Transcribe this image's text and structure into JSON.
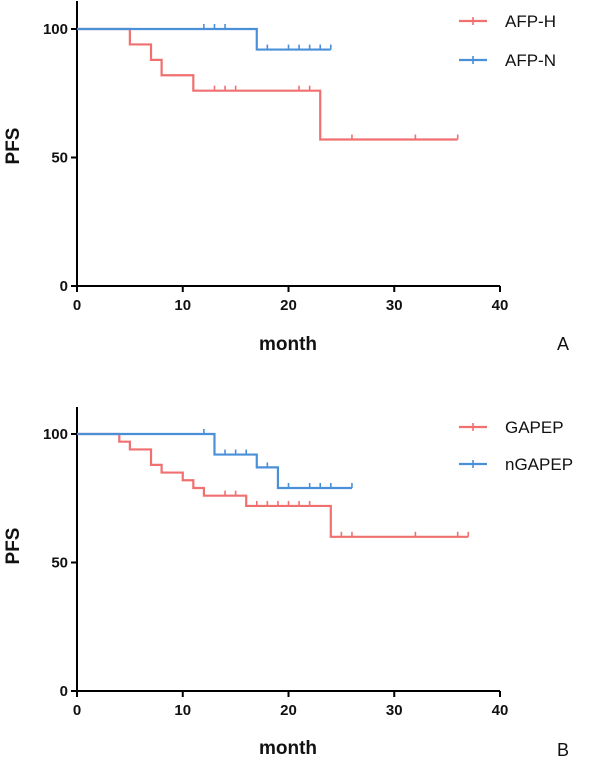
{
  "chart_data": [
    {
      "type": "line",
      "panel_label": "A",
      "xlabel": "month",
      "ylabel": "PFS",
      "xlim": [
        0,
        40
      ],
      "ylim": [
        0,
        110
      ],
      "xticks": [
        0,
        10,
        20,
        30,
        40
      ],
      "yticks": [
        0,
        50,
        100
      ],
      "legend_position": "top-right",
      "series": [
        {
          "name": "AFP-H",
          "color": "#f07070",
          "step": [
            [
              0,
              100
            ],
            [
              5,
              94
            ],
            [
              7,
              88
            ],
            [
              8,
              82
            ],
            [
              11,
              76
            ],
            [
              23,
              57
            ],
            [
              36,
              57
            ]
          ],
          "censored": [
            [
              13,
              76
            ],
            [
              14,
              76
            ],
            [
              15,
              76
            ],
            [
              21,
              76
            ],
            [
              22,
              76
            ],
            [
              26,
              57
            ],
            [
              32,
              57
            ],
            [
              36,
              57
            ]
          ]
        },
        {
          "name": "AFP-N",
          "color": "#4a90d9",
          "step": [
            [
              0,
              100
            ],
            [
              17,
              92
            ],
            [
              24,
              92
            ]
          ],
          "censored": [
            [
              12,
              100
            ],
            [
              13,
              100
            ],
            [
              14,
              100
            ],
            [
              18,
              92
            ],
            [
              20,
              92
            ],
            [
              21,
              92
            ],
            [
              22,
              92
            ],
            [
              23,
              92
            ],
            [
              24,
              92
            ]
          ]
        }
      ]
    },
    {
      "type": "line",
      "panel_label": "B",
      "xlabel": "month",
      "ylabel": "PFS",
      "xlim": [
        0,
        40
      ],
      "ylim": [
        0,
        110
      ],
      "xticks": [
        0,
        10,
        20,
        30,
        40
      ],
      "yticks": [
        0,
        50,
        100
      ],
      "legend_position": "top-right",
      "series": [
        {
          "name": "GAPEP",
          "color": "#f07070",
          "step": [
            [
              0,
              100
            ],
            [
              4,
              97
            ],
            [
              5,
              94
            ],
            [
              7,
              88
            ],
            [
              8,
              85
            ],
            [
              10,
              82
            ],
            [
              11,
              79
            ],
            [
              12,
              76
            ],
            [
              16,
              72
            ],
            [
              24,
              60
            ],
            [
              37,
              60
            ]
          ],
          "censored": [
            [
              14,
              76
            ],
            [
              15,
              76
            ],
            [
              17,
              72
            ],
            [
              18,
              72
            ],
            [
              19,
              72
            ],
            [
              20,
              72
            ],
            [
              21,
              72
            ],
            [
              22,
              72
            ],
            [
              25,
              60
            ],
            [
              26,
              60
            ],
            [
              32,
              60
            ],
            [
              36,
              60
            ],
            [
              37,
              60
            ]
          ]
        },
        {
          "name": "nGAPEP",
          "color": "#4a90d9",
          "step": [
            [
              0,
              100
            ],
            [
              13,
              92
            ],
            [
              17,
              87
            ],
            [
              19,
              79
            ],
            [
              26,
              79
            ]
          ],
          "censored": [
            [
              12,
              100
            ],
            [
              14,
              92
            ],
            [
              15,
              92
            ],
            [
              16,
              92
            ],
            [
              18,
              87
            ],
            [
              20,
              79
            ],
            [
              22,
              79
            ],
            [
              23,
              79
            ],
            [
              24,
              79
            ],
            [
              26,
              79
            ]
          ]
        }
      ]
    }
  ]
}
